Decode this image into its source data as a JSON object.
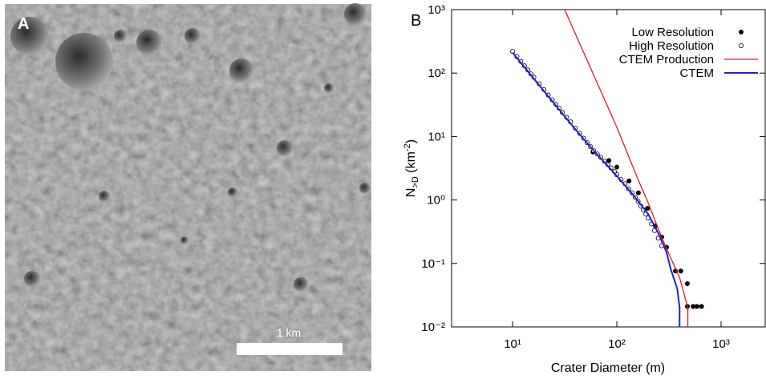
{
  "panel_a": {
    "label": "A",
    "scale_bar": "1 km"
  },
  "chart_data": {
    "type": "scatter",
    "panel_label": "B",
    "xlabel": "Crater Diameter (m)",
    "ylabel": {
      "base": "N",
      "subscript": ">D",
      "unit": " (km",
      "superscript": "-2",
      "close": ")"
    },
    "log_x": true,
    "log_y": true,
    "legend": "upper right",
    "xlim": [
      2.6,
      2650
    ],
    "ylim": [
      0.01,
      1000
    ],
    "xticks": [
      {
        "value": 10,
        "label": "10¹"
      },
      {
        "value": 100,
        "label": "10²"
      },
      {
        "value": 1000,
        "label": "10³"
      }
    ],
    "yticks": [
      {
        "value": 0.01,
        "label": "10⁻²"
      },
      {
        "value": 0.1,
        "label": "10⁻¹"
      },
      {
        "value": 1,
        "label": "10⁰"
      },
      {
        "value": 10,
        "label": "10¹"
      },
      {
        "value": 100,
        "label": "10²"
      },
      {
        "value": 1000,
        "label": "10³"
      }
    ],
    "series": [
      {
        "name": "Low Resolution",
        "marker": "filled",
        "color": "#000000",
        "x": [
          59,
          84,
          100,
          131,
          161,
          197,
          234,
          270,
          300,
          365,
          411,
          475,
          475,
          540,
          587,
          650
        ],
        "values": [
          5.7,
          4.2,
          3.3,
          2.0,
          1.3,
          0.74,
          0.39,
          0.26,
          0.18,
          0.076,
          0.076,
          0.048,
          0.021,
          0.021,
          0.021,
          0.021
        ]
      },
      {
        "name": "High Resolution",
        "marker": "open",
        "color": "#000000",
        "x": [
          10,
          11,
          12,
          13,
          14,
          15,
          16,
          18,
          20,
          22,
          24,
          26,
          28,
          30,
          33,
          36,
          40,
          44,
          48,
          52,
          56,
          60,
          65,
          70,
          76,
          82,
          88,
          95,
          100,
          110,
          120,
          130,
          140,
          150,
          160,
          170,
          180,
          190,
          200,
          215,
          230,
          250,
          270
        ],
        "values": [
          220,
          182,
          152,
          130,
          112,
          97,
          86,
          68,
          55,
          45,
          38,
          32,
          28,
          24,
          20,
          17,
          13.6,
          11.2,
          9.4,
          8.0,
          6.9,
          6.0,
          5.3,
          4.7,
          4.1,
          3.6,
          3.2,
          2.8,
          2.5,
          2.1,
          1.8,
          1.5,
          1.3,
          1.1,
          0.95,
          0.8,
          0.7,
          0.6,
          0.52,
          0.42,
          0.33,
          0.25,
          0.19
        ]
      },
      {
        "name": "CTEM Production",
        "marker": "line",
        "color": "#cc2222",
        "x": [
          31.6,
          100,
          160,
          200,
          250,
          300,
          400,
          480,
          480
        ],
        "values": [
          1000,
          14,
          2.1,
          0.9,
          0.35,
          0.17,
          0.06,
          0.02,
          0.01
        ]
      },
      {
        "name": "CTEM",
        "marker": "line",
        "color": "#2222cc",
        "x": [
          10,
          20,
          40,
          60,
          100,
          150,
          200,
          250,
          300,
          330,
          380,
          400,
          400
        ],
        "values": [
          210,
          52,
          13,
          6,
          2.4,
          1.1,
          0.6,
          0.3,
          0.15,
          0.08,
          0.04,
          0.02,
          0.01
        ]
      }
    ]
  }
}
